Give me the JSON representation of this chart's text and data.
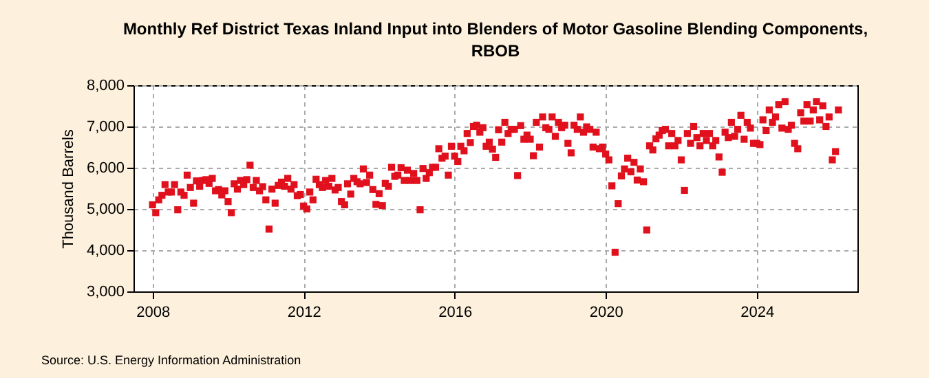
{
  "chart_data": {
    "type": "scatter",
    "title": "Monthly Ref District Texas Inland Input into Blenders of Motor Gasoline Blending Components, RBOB",
    "ylabel": "Thousand Barrels",
    "annotations": [
      "Source: U.S. Energy Information Administration"
    ],
    "x": [
      "2008-01",
      "2008-02",
      "2008-03",
      "2008-04",
      "2008-05",
      "2008-06",
      "2008-07",
      "2008-08",
      "2008-09",
      "2008-10",
      "2008-11",
      "2008-12",
      "2009-01",
      "2009-02",
      "2009-03",
      "2009-04",
      "2009-05",
      "2009-06",
      "2009-07",
      "2009-08",
      "2009-09",
      "2009-10",
      "2009-11",
      "2009-12",
      "2010-01",
      "2010-02",
      "2010-03",
      "2010-04",
      "2010-05",
      "2010-06",
      "2010-07",
      "2010-08",
      "2010-09",
      "2010-10",
      "2010-11",
      "2010-12",
      "2011-01",
      "2011-02",
      "2011-03",
      "2011-04",
      "2011-05",
      "2011-06",
      "2011-07",
      "2011-08",
      "2011-09",
      "2011-10",
      "2011-11",
      "2011-12",
      "2012-01",
      "2012-02",
      "2012-03",
      "2012-04",
      "2012-05",
      "2012-06",
      "2012-07",
      "2012-08",
      "2012-09",
      "2012-10",
      "2012-11",
      "2012-12",
      "2013-01",
      "2013-02",
      "2013-03",
      "2013-04",
      "2013-05",
      "2013-06",
      "2013-07",
      "2013-08",
      "2013-09",
      "2013-10",
      "2013-11",
      "2013-12",
      "2014-01",
      "2014-02",
      "2014-03",
      "2014-04",
      "2014-05",
      "2014-06",
      "2014-07",
      "2014-08",
      "2014-09",
      "2014-10",
      "2014-11",
      "2014-12",
      "2015-01",
      "2015-02",
      "2015-03",
      "2015-04",
      "2015-05",
      "2015-06",
      "2015-07",
      "2015-08",
      "2015-09",
      "2015-10",
      "2015-11",
      "2015-12",
      "2016-01",
      "2016-02",
      "2016-03",
      "2016-04",
      "2016-05",
      "2016-06",
      "2016-07",
      "2016-08",
      "2016-09",
      "2016-10",
      "2016-11",
      "2016-12",
      "2017-01",
      "2017-02",
      "2017-03",
      "2017-04",
      "2017-05",
      "2017-06",
      "2017-07",
      "2017-08",
      "2017-09",
      "2017-10",
      "2017-11",
      "2017-12",
      "2018-01",
      "2018-02",
      "2018-03",
      "2018-04",
      "2018-05",
      "2018-06",
      "2018-07",
      "2018-08",
      "2018-09",
      "2018-10",
      "2018-11",
      "2018-12",
      "2019-01",
      "2019-02",
      "2019-03",
      "2019-04",
      "2019-05",
      "2019-06",
      "2019-07",
      "2019-08",
      "2019-09",
      "2019-10",
      "2019-11",
      "2019-12",
      "2020-01",
      "2020-02",
      "2020-03",
      "2020-04",
      "2020-05",
      "2020-06",
      "2020-07",
      "2020-08",
      "2020-09",
      "2020-10",
      "2020-11",
      "2020-12",
      "2021-01",
      "2021-02",
      "2021-03",
      "2021-04",
      "2021-05",
      "2021-06",
      "2021-07",
      "2021-08",
      "2021-09",
      "2021-10",
      "2021-11",
      "2021-12",
      "2022-01",
      "2022-02",
      "2022-03",
      "2022-04",
      "2022-05",
      "2022-06",
      "2022-07",
      "2022-08",
      "2022-09",
      "2022-10",
      "2022-11",
      "2022-12",
      "2023-01",
      "2023-02",
      "2023-03",
      "2023-04",
      "2023-05",
      "2023-06",
      "2023-07",
      "2023-08",
      "2023-09",
      "2023-10",
      "2023-11",
      "2023-12",
      "2024-01",
      "2024-02",
      "2024-03",
      "2024-04",
      "2024-05",
      "2024-06",
      "2024-07",
      "2024-08",
      "2024-09",
      "2024-10",
      "2024-11",
      "2024-12",
      "2025-01",
      "2025-02",
      "2025-03",
      "2025-04",
      "2025-05",
      "2025-06",
      "2025-07",
      "2025-08",
      "2025-09",
      "2025-10",
      "2025-11",
      "2025-12",
      "2026-01",
      "2026-02",
      "2026-03"
    ],
    "series": [
      {
        "color": "#e0101c",
        "values": [
          5100,
          4910,
          5220,
          5330,
          5590,
          5410,
          5410,
          5590,
          4980,
          5410,
          5330,
          5820,
          5520,
          5140,
          5680,
          5550,
          5690,
          5710,
          5620,
          5740,
          5440,
          5470,
          5340,
          5440,
          5180,
          4910,
          5610,
          5480,
          5690,
          5590,
          5710,
          6060,
          5520,
          5690,
          5440,
          5540,
          5220,
          4510,
          5480,
          5140,
          5570,
          5650,
          5550,
          5740,
          5480,
          5590,
          5320,
          5350,
          5070,
          5000,
          5410,
          5220,
          5720,
          5590,
          5520,
          5690,
          5550,
          5740,
          5460,
          5520,
          5180,
          5100,
          5610,
          5360,
          5740,
          5660,
          5610,
          5970,
          5640,
          5820,
          5470,
          5110,
          5370,
          5080,
          5620,
          5550,
          6010,
          5790,
          5820,
          6000,
          5690,
          5940,
          5690,
          5860,
          5690,
          4980,
          5980,
          5740,
          5880,
          6010,
          6010,
          6460,
          6230,
          6280,
          5820,
          6520,
          6280,
          6150,
          6520,
          6410,
          6830,
          6610,
          7000,
          7030,
          6860,
          6970,
          6520,
          6620,
          6450,
          6250,
          6920,
          6620,
          7100,
          6830,
          6930,
          6930,
          5810,
          7020,
          6690,
          6790,
          6690,
          6290,
          7100,
          6500,
          7230,
          6970,
          6930,
          7230,
          6760,
          7100,
          6970,
          7030,
          6590,
          6360,
          7030,
          6930,
          7230,
          6860,
          6990,
          6930,
          6500,
          6860,
          6460,
          6500,
          6330,
          6190,
          5560,
          3950,
          5130,
          5800,
          5970,
          6230,
          5900,
          6130,
          5700,
          5970,
          5660,
          4490,
          6530,
          6430,
          6700,
          6790,
          6900,
          6930,
          6530,
          6830,
          6530,
          6660,
          6190,
          5450,
          6830,
          6590,
          7000,
          6730,
          6530,
          6830,
          6660,
          6830,
          6530,
          6660,
          6260,
          5890,
          6860,
          6730,
          7100,
          6760,
          6930,
          7270,
          6690,
          7100,
          6960,
          6590,
          6590,
          6560,
          7160,
          6900,
          7400,
          7100,
          7230,
          7530,
          6960,
          7600,
          6930,
          7030,
          6590,
          6460,
          7330,
          7130,
          7530,
          7130,
          7400,
          7600,
          7160,
          7500,
          7000,
          7230,
          6190,
          6390,
          7400
        ]
      }
    ],
    "xlim": [
      "2007-07",
      "2026-09"
    ],
    "xticks": [
      {
        "value": "2008-01",
        "label": "2008"
      },
      {
        "value": "2012-01",
        "label": "2012"
      },
      {
        "value": "2016-01",
        "label": "2016"
      },
      {
        "value": "2020-01",
        "label": "2020"
      },
      {
        "value": "2024-01",
        "label": "2024"
      }
    ],
    "ylim": [
      3000,
      8000
    ],
    "yticks": [
      {
        "value": 3000,
        "label": "3,000"
      },
      {
        "value": 4000,
        "label": "4,000"
      },
      {
        "value": 5000,
        "label": "5,000"
      },
      {
        "value": 6000,
        "label": "6,000"
      },
      {
        "value": 7000,
        "label": "7,000"
      },
      {
        "value": 8000,
        "label": "8,000"
      }
    ],
    "grid": true,
    "marker": "square"
  }
}
